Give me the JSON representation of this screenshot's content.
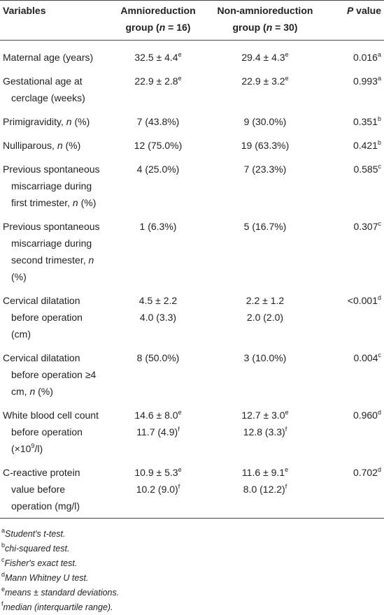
{
  "table": {
    "header": [
      [
        [
          "Variables"
        ]
      ],
      [
        [
          "Amnioreduction group (",
          {
            "i": "n"
          },
          " = 16)"
        ]
      ],
      [
        [
          "Non-amnioreduction group (",
          {
            "i": "n"
          },
          " = 30)"
        ]
      ],
      [
        [
          {
            "i": "P"
          },
          " value"
        ]
      ]
    ],
    "rows": [
      [
        [
          [
            "Maternal age (years)"
          ]
        ],
        [
          [
            "32.5 ± 4.4",
            {
              "sup": "e"
            }
          ]
        ],
        [
          [
            "29.4 ± 4.3",
            {
              "sup": "e"
            }
          ]
        ],
        [
          [
            "0.016",
            {
              "sup": "a"
            }
          ]
        ]
      ],
      [
        [
          [
            "Gestational age at cerclage (weeks)"
          ]
        ],
        [
          [
            "22.9 ± 2.8",
            {
              "sup": "e"
            }
          ]
        ],
        [
          [
            "22.9 ± 3.2",
            {
              "sup": "e"
            }
          ]
        ],
        [
          [
            "0.993",
            {
              "sup": "a"
            }
          ]
        ]
      ],
      [
        [
          [
            "Primigravidity, ",
            {
              "i": "n"
            },
            " (%)"
          ]
        ],
        [
          [
            "7 (43.8%)"
          ]
        ],
        [
          [
            "9 (30.0%)"
          ]
        ],
        [
          [
            "0.351",
            {
              "sup": "b"
            }
          ]
        ]
      ],
      [
        [
          [
            "Nulliparous, ",
            {
              "i": "n"
            },
            " (%)"
          ]
        ],
        [
          [
            "12 (75.0%)"
          ]
        ],
        [
          [
            "19 (63.3%)"
          ]
        ],
        [
          [
            "0.421",
            {
              "sup": "b"
            }
          ]
        ]
      ],
      [
        [
          [
            "Previous spontaneous miscarriage during first trimester, ",
            {
              "i": "n"
            },
            " (%)"
          ]
        ],
        [
          [
            "4 (25.0%)"
          ]
        ],
        [
          [
            "7 (23.3%)"
          ]
        ],
        [
          [
            "0.585",
            {
              "sup": "c"
            }
          ]
        ]
      ],
      [
        [
          [
            "Previous spontaneous miscarriage during second trimester, ",
            {
              "i": "n"
            },
            " (%)"
          ]
        ],
        [
          [
            "1 (6.3%)"
          ]
        ],
        [
          [
            "5 (16.7%)"
          ]
        ],
        [
          [
            "0.307",
            {
              "sup": "c"
            }
          ]
        ]
      ],
      [
        [
          [
            "Cervical dilatation before operation (cm)"
          ]
        ],
        [
          [
            "4.5 ± 2.2"
          ],
          [
            "4.0 (3.3)"
          ]
        ],
        [
          [
            "2.2 ± 1.2"
          ],
          [
            "2.0 (2.0)"
          ]
        ],
        [
          [
            "<0.001",
            {
              "sup": "d"
            }
          ]
        ]
      ],
      [
        [
          [
            "Cervical dilatation before operation ≥4 cm, ",
            {
              "i": "n"
            },
            " (%)"
          ]
        ],
        [
          [
            "8 (50.0%)"
          ]
        ],
        [
          [
            "3 (10.0%)"
          ]
        ],
        [
          [
            "0.004",
            {
              "sup": "c"
            }
          ]
        ]
      ],
      [
        [
          [
            "White blood cell count before operation (×10",
            {
              "sup": "9"
            },
            "/l)"
          ]
        ],
        [
          [
            "14.6 ± 8.0",
            {
              "sup": "e"
            }
          ],
          [
            "11.7 (4.9)",
            {
              "sup": "f"
            }
          ]
        ],
        [
          [
            "12.7 ± 3.0",
            {
              "sup": "e"
            }
          ],
          [
            "12.8 (3.3)",
            {
              "sup": "f"
            }
          ]
        ],
        [
          [
            "0.960",
            {
              "sup": "d"
            }
          ]
        ]
      ],
      [
        [
          [
            "C-reactive protein value before operation (mg/l)"
          ]
        ],
        [
          [
            "10.9 ± 5.3",
            {
              "sup": "e"
            }
          ],
          [
            "10.2 (9.0)",
            {
              "sup": "f"
            }
          ]
        ],
        [
          [
            "11.6 ± 9.1",
            {
              "sup": "e"
            }
          ],
          [
            "8.0 (12.2)",
            {
              "sup": "f"
            }
          ]
        ],
        [
          [
            "0.702",
            {
              "sup": "d"
            }
          ]
        ]
      ]
    ]
  },
  "footnotes": [
    [
      {
        "sup": "a"
      },
      {
        "i": "Student's t-test."
      }
    ],
    [
      {
        "sup": "b"
      },
      {
        "i": "chi-squared test."
      }
    ],
    [
      {
        "sup": "c"
      },
      {
        "i": "Fisher's exact test."
      }
    ],
    [
      {
        "sup": "d"
      },
      {
        "i": "Mann Whitney U test."
      }
    ],
    [
      {
        "sup": "e"
      },
      {
        "i": "means ± standard deviations."
      }
    ],
    [
      {
        "sup": "f"
      },
      {
        "i": "median (interquartile range)."
      }
    ]
  ]
}
